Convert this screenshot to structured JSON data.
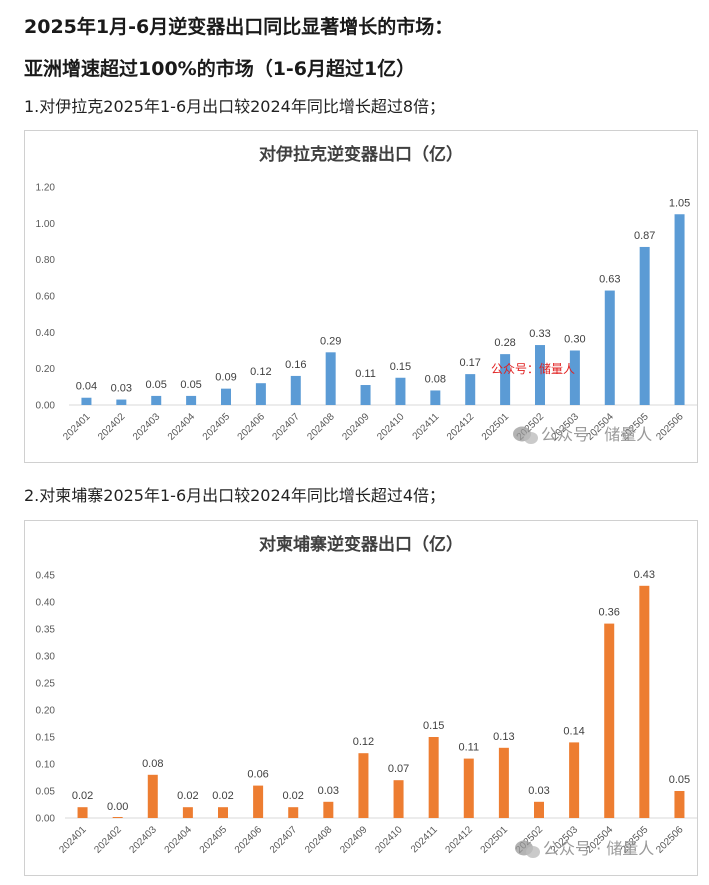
{
  "headings": {
    "line1": "2025年1月-6月逆变器出口同比显著增长的市场：",
    "line2": "亚洲增速超过100%的市场（1-6月超过1亿）"
  },
  "paragraphs": {
    "iraq": "1.对伊拉克2025年1-6月出口较2024年同比增长超过8倍；",
    "cambodia": "2.对柬埔寨2025年1-6月出口较2024年同比增长超过4倍；"
  },
  "watermarks": {
    "red_label": "公众号：储量人",
    "gray_label": "公众号 · 储量人"
  },
  "colors": {
    "iraq_bar": "#5b9bd5",
    "cambodia_bar": "#ed7d31"
  },
  "icons": {
    "watermark": "wechat-icon"
  },
  "chart_data": [
    {
      "type": "bar",
      "title": "对伊拉克逆变器出口（亿）",
      "categories": [
        "202401",
        "202402",
        "202403",
        "202404",
        "202405",
        "202406",
        "202407",
        "202408",
        "202409",
        "202410",
        "202411",
        "202412",
        "202501",
        "202502",
        "202503",
        "202504",
        "202505",
        "202506"
      ],
      "values": [
        0.04,
        0.03,
        0.05,
        0.05,
        0.09,
        0.12,
        0.16,
        0.29,
        0.11,
        0.15,
        0.08,
        0.17,
        0.28,
        0.33,
        0.3,
        0.63,
        0.87,
        1.05
      ],
      "ylim": [
        0,
        1.2
      ],
      "yticks": [
        "0.00",
        "0.20",
        "0.40",
        "0.60",
        "0.80",
        "1.00",
        "1.20"
      ],
      "grid": false
    },
    {
      "type": "bar",
      "title": "对柬埔寨逆变器出口（亿）",
      "categories": [
        "202401",
        "202402",
        "202403",
        "202404",
        "202405",
        "202406",
        "202407",
        "202408",
        "202409",
        "202410",
        "202411",
        "202412",
        "202501",
        "202502",
        "202503",
        "202504",
        "202505",
        "202506"
      ],
      "values": [
        0.02,
        0.0,
        0.08,
        0.02,
        0.02,
        0.06,
        0.02,
        0.03,
        0.12,
        0.07,
        0.15,
        0.11,
        0.13,
        0.03,
        0.14,
        0.36,
        0.43,
        0.05
      ],
      "ylim": [
        0,
        0.45
      ],
      "yticks": [
        "0.00",
        "0.05",
        "0.10",
        "0.15",
        "0.20",
        "0.25",
        "0.30",
        "0.35",
        "0.40",
        "0.45"
      ],
      "grid": false
    }
  ]
}
